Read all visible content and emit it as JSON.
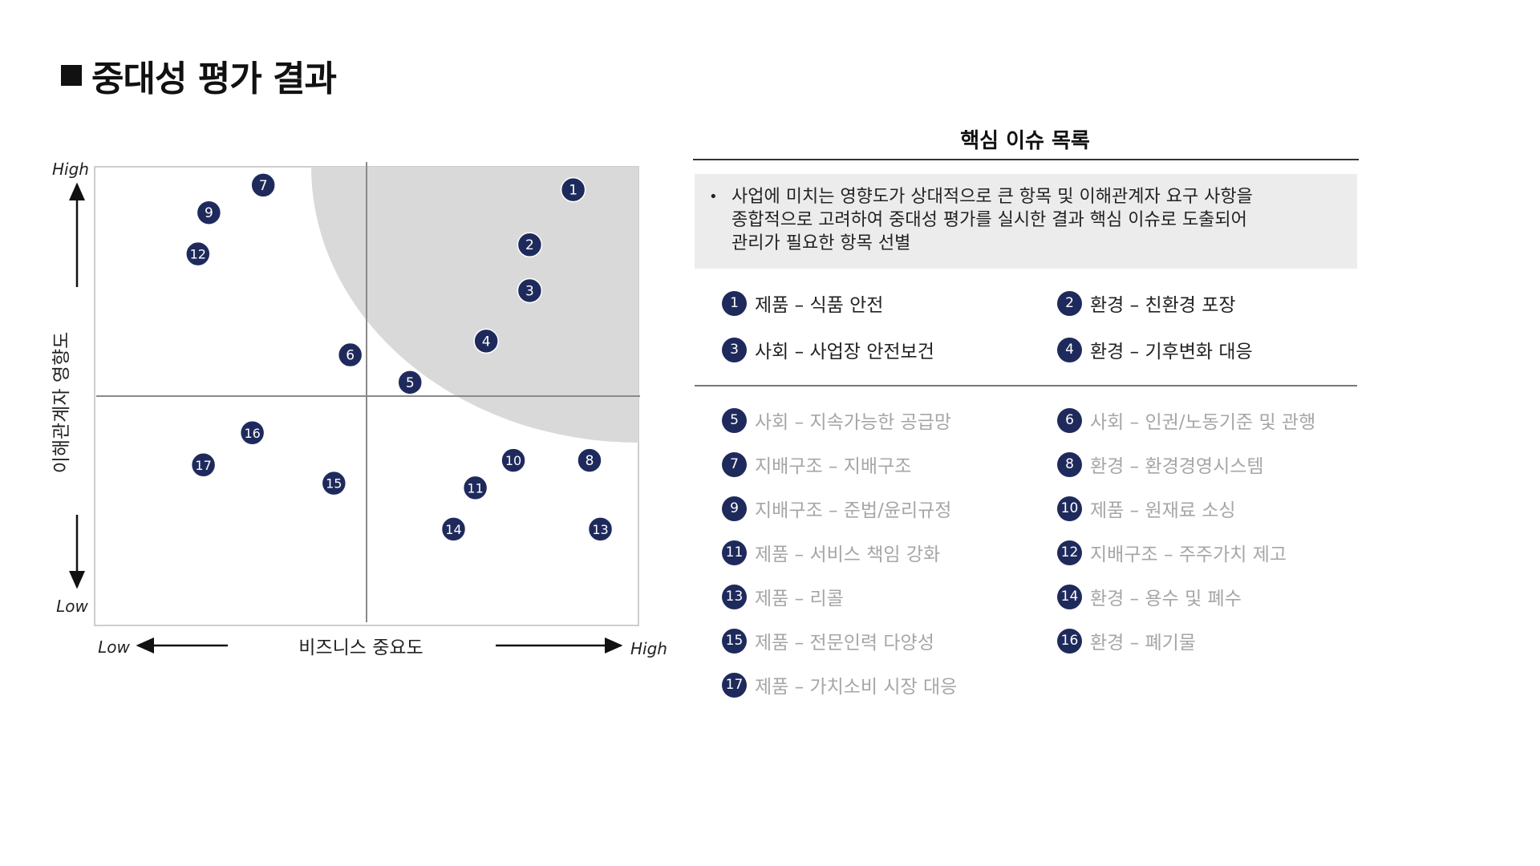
{
  "page_title": "중대성 평가 결과",
  "panel": {
    "title": "핵심 이슈 목록",
    "summary_bullet": "•",
    "summary_text": "사업에 미치는 영향도가 상대적으로 큰 항목 및 이해관계자 요구 사항을\n종합적으로 고려하여 중대성 평가를 실시한  결과 핵심 이슈로 도출되어\n관리가 필요한 항목 선별"
  },
  "issues": [
    {
      "num": "1",
      "label": "제품 – 식품 안전",
      "core": true
    },
    {
      "num": "2",
      "label": "환경 – 친환경 포장",
      "core": true
    },
    {
      "num": "3",
      "label": "사회 – 사업장 안전보건",
      "core": true
    },
    {
      "num": "4",
      "label": "환경 – 기후변화 대응",
      "core": true
    },
    {
      "num": "5",
      "label": "사회 – 지속가능한 공급망",
      "core": false
    },
    {
      "num": "6",
      "label": "사회 – 인권/노동기준 및 관행",
      "core": false
    },
    {
      "num": "7",
      "label": "지배구조 – 지배구조",
      "core": false
    },
    {
      "num": "8",
      "label": "환경 – 환경경영시스템",
      "core": false
    },
    {
      "num": "9",
      "label": "지배구조 – 준법/윤리규정",
      "core": false
    },
    {
      "num": "10",
      "label": "제품 – 원재료 소싱",
      "core": false
    },
    {
      "num": "11",
      "label": "제품 – 서비스 책임 강화",
      "core": false
    },
    {
      "num": "12",
      "label": "지배구조 – 주주가치 제고",
      "core": false
    },
    {
      "num": "13",
      "label": "제품 – 리콜",
      "core": false
    },
    {
      "num": "14",
      "label": "환경 – 용수 및 폐수",
      "core": false
    },
    {
      "num": "15",
      "label": "제품 – 전문인력 다양성",
      "core": false
    },
    {
      "num": "16",
      "label": "환경 – 폐기물",
      "core": false
    },
    {
      "num": "17",
      "label": "제품 – 가치소비 시장 대응",
      "core": false
    }
  ],
  "chart_data": {
    "type": "scatter",
    "title": "",
    "xlabel": "비즈니스 중요도",
    "ylabel": "이해관계자 영향도",
    "x_low_label": "Low",
    "x_high_label": "High",
    "y_low_label": "Low",
    "y_high_label": "High",
    "xlim": [
      0,
      100
    ],
    "ylim": [
      0,
      100
    ],
    "quadrant_split": {
      "x": 50,
      "y": 50
    },
    "grid": false,
    "highlight_region": "top-right (core issues)",
    "colors": {
      "point": "#1f2a5c",
      "highlight": "#d9d9d9",
      "point_text": "#ffffff"
    },
    "points": [
      {
        "label": "1",
        "x": 88,
        "y": 95
      },
      {
        "label": "2",
        "x": 80,
        "y": 83
      },
      {
        "label": "3",
        "x": 80,
        "y": 73
      },
      {
        "label": "4",
        "x": 72,
        "y": 62
      },
      {
        "label": "5",
        "x": 58,
        "y": 53
      },
      {
        "label": "6",
        "x": 47,
        "y": 59
      },
      {
        "label": "7",
        "x": 31,
        "y": 96
      },
      {
        "label": "8",
        "x": 91,
        "y": 36
      },
      {
        "label": "9",
        "x": 21,
        "y": 90
      },
      {
        "label": "10",
        "x": 77,
        "y": 36
      },
      {
        "label": "11",
        "x": 70,
        "y": 30
      },
      {
        "label": "12",
        "x": 19,
        "y": 81
      },
      {
        "label": "13",
        "x": 93,
        "y": 21
      },
      {
        "label": "14",
        "x": 66,
        "y": 21
      },
      {
        "label": "15",
        "x": 44,
        "y": 31
      },
      {
        "label": "16",
        "x": 29,
        "y": 42
      },
      {
        "label": "17",
        "x": 20,
        "y": 35
      }
    ]
  }
}
